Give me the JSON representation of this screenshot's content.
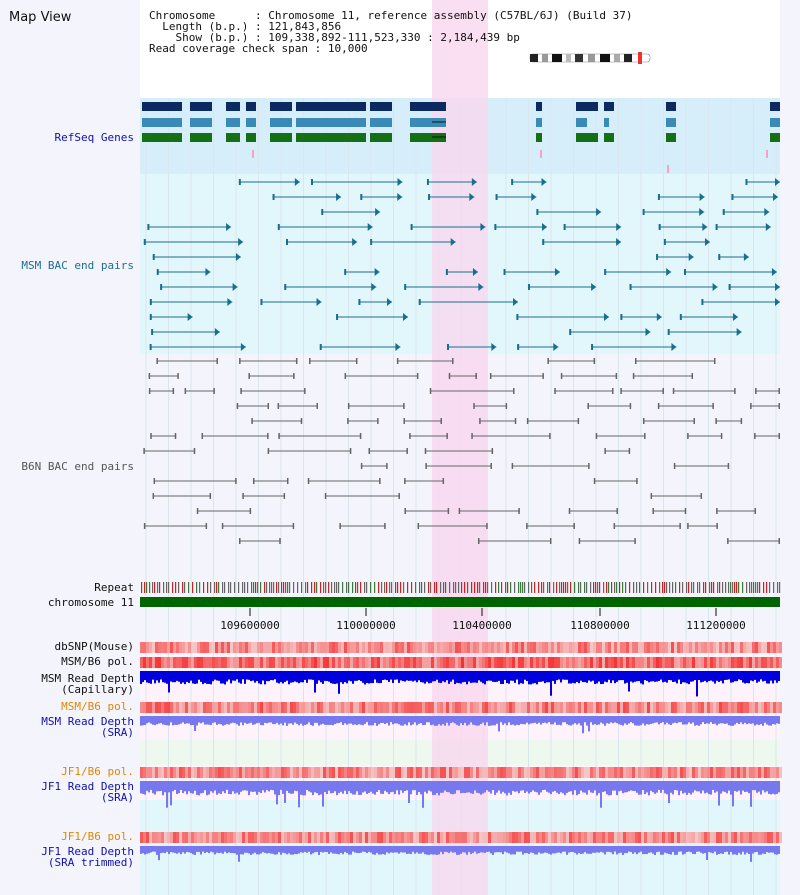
{
  "title": "Map View",
  "header": {
    "chromosome_label": "Chromosome",
    "chromosome_value": "Chromosome 11, reference assembly (C57BL/6J) (Build 37)",
    "length_label": "Length (b.p.)",
    "length_value": "121,843,856",
    "show_label": "Show (b.p.)",
    "show_value": "109,338,892-111,523,330 : 2,184,439 bp",
    "coverage_label": "Read coverage check span",
    "coverage_value": "10,000"
  },
  "tracks": {
    "refseq": "RefSeq Genes",
    "msm_bac": "MSM BAC end pairs",
    "b6n_bac": "B6N BAC end pairs",
    "repeat": "Repeat",
    "chromosome": "chromosome 11",
    "dbsnp": "dbSNP(Mouse)",
    "msm_b6_pol": "MSM/B6 pol.",
    "msm_depth_cap_1": "MSM Read Depth",
    "msm_depth_cap_2": "(Capillary)",
    "msm_b6_pol_2": "MSM/B6 pol.",
    "msm_depth_sra_1": "MSM Read Depth",
    "msm_depth_sra_2": "(SRA)",
    "jf1_b6_pol": "JF1/B6 pol.",
    "jf1_depth_sra_1": "JF1 Read Depth",
    "jf1_depth_sra_2": "(SRA)",
    "jf1_b6_pol_2": "JF1/B6 pol.",
    "jf1_depth_trim_1": "JF1 Read Depth",
    "jf1_depth_trim_2": "(SRA trimmed)"
  },
  "axis": {
    "ticks": [
      "109600000",
      "110000000",
      "110400000",
      "110800000",
      "111200000"
    ]
  },
  "colors": {
    "refseq_bg": "#d6eefa",
    "msm_bg": "#e2f7fb",
    "b6n_bg": "#f4f4fc",
    "highlight": "#f9d7ef",
    "chrom": "#006400",
    "refseq_dark": "#0a2a60",
    "refseq_mid": "#3a8ab8",
    "refseq_green": "#157015",
    "msm_pair": "#1a6e8e",
    "b6n_pair": "#666666",
    "depth_dark": "#0000dd",
    "depth_light": "#7777ee",
    "label_blue": "#1111aa",
    "label_orange": "#dd8800"
  }
}
